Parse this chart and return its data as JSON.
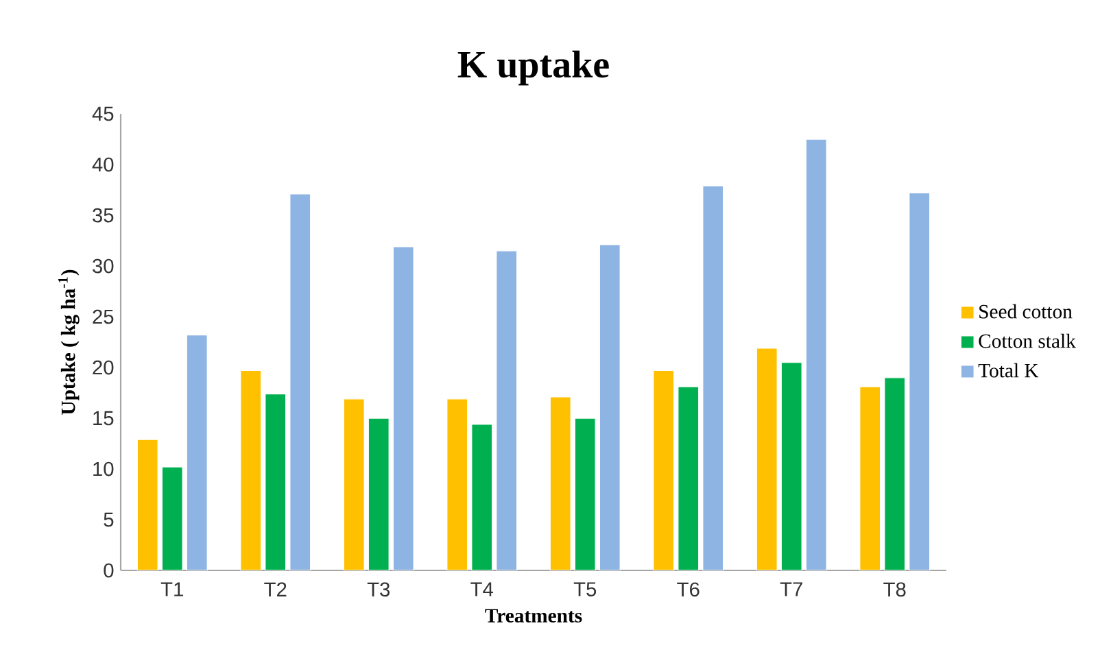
{
  "chart_data": {
    "type": "bar",
    "title": "K uptake",
    "xlabel": "Treatments",
    "ylabel": "Uptake ( kg ha$^{-1}$)",
    "categories": [
      "T1",
      "T2",
      "T3",
      "T4",
      "T5",
      "T6",
      "T7",
      "T8"
    ],
    "series": [
      {
        "name": "Seed cotton",
        "color": "#ffc000",
        "values": [
          12.9,
          19.7,
          16.9,
          16.9,
          17.1,
          19.7,
          21.9,
          18.1
        ]
      },
      {
        "name": "Cotton stalk",
        "color": "#00b050",
        "values": [
          10.2,
          17.4,
          15.0,
          14.4,
          15.0,
          18.1,
          20.5,
          19.0
        ]
      },
      {
        "name": "Total K",
        "color": "#8eb4e3",
        "values": [
          23.2,
          37.1,
          31.9,
          31.5,
          32.1,
          37.9,
          42.5,
          37.2
        ]
      }
    ],
    "ylim": [
      0,
      45
    ],
    "yticks": [
      0,
      5,
      10,
      15,
      20,
      25,
      30,
      35,
      40,
      45
    ],
    "grid": false,
    "legend": "right"
  }
}
